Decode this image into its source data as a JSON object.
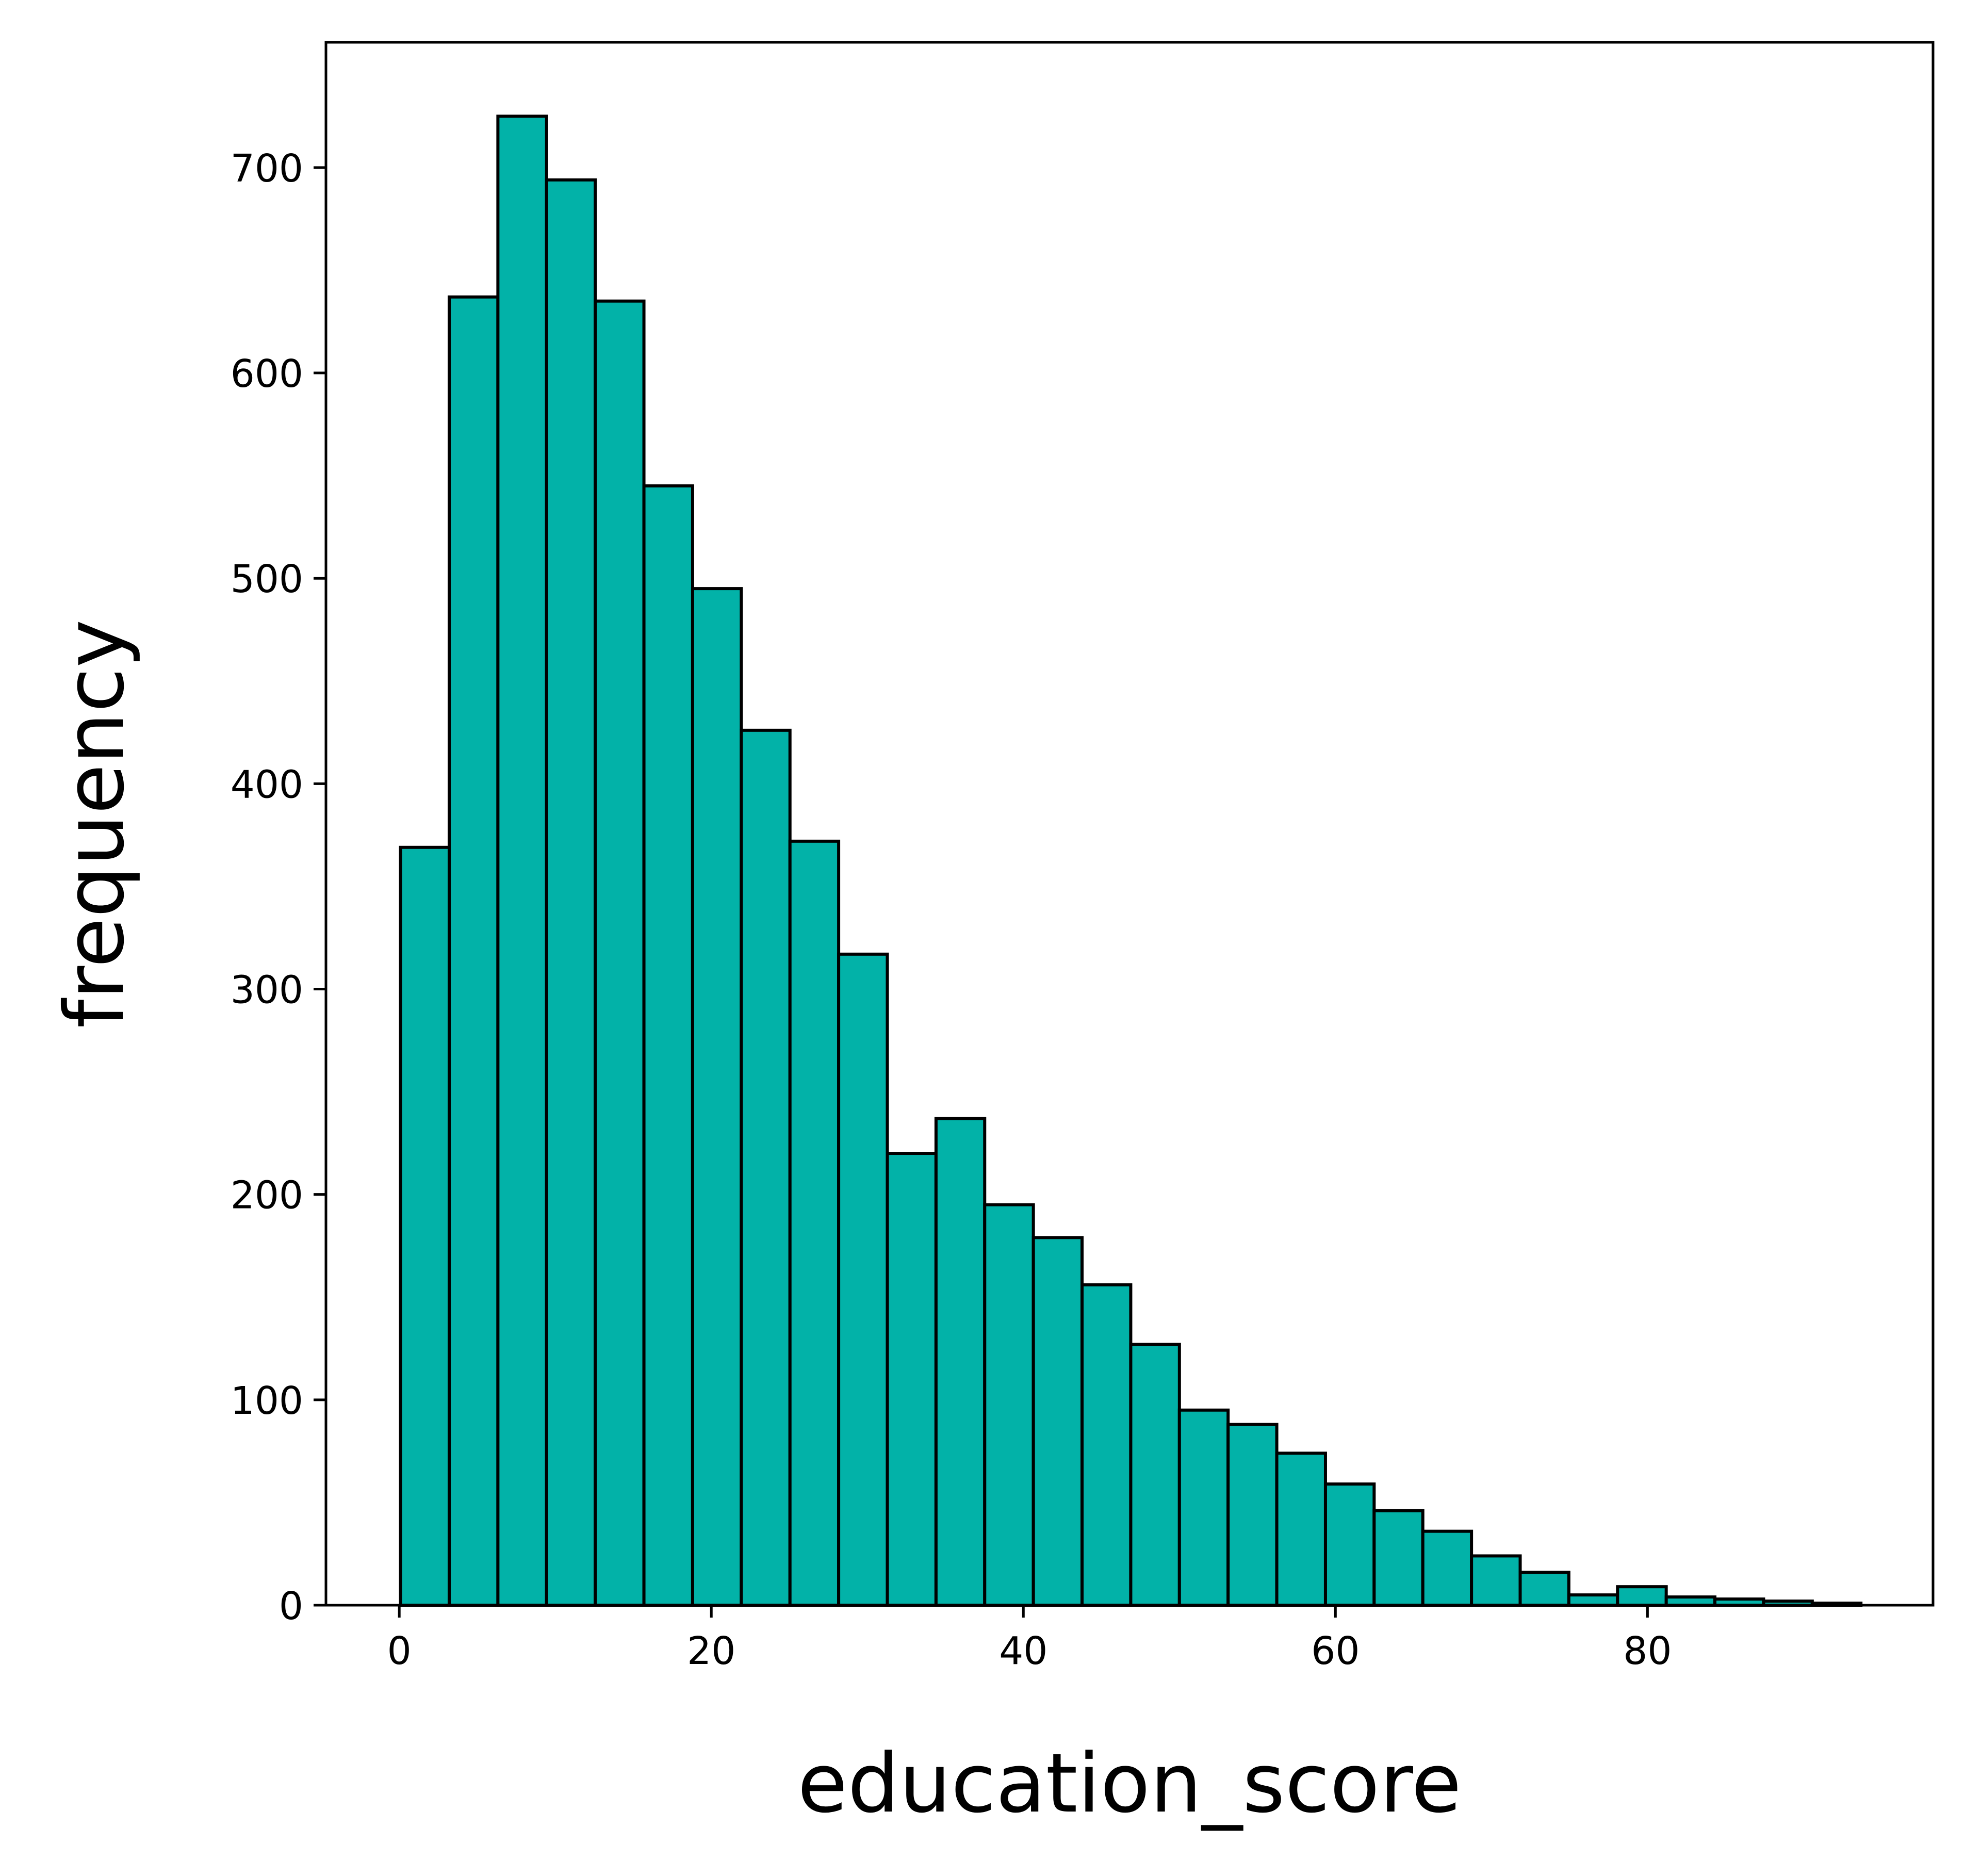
{
  "chart_data": {
    "type": "bar",
    "histogram": true,
    "xlabel": "education_score",
    "ylabel": "frequency",
    "xlim": [
      -4.7,
      98.3
    ],
    "ylim": [
      0,
      761
    ],
    "xticks": [
      0,
      20,
      40,
      60,
      80
    ],
    "yticks": [
      0,
      100,
      200,
      300,
      400,
      500,
      600,
      700
    ],
    "bin_edges": [
      0.08,
      3.2,
      6.32,
      9.44,
      12.56,
      15.68,
      18.8,
      21.92,
      25.04,
      28.16,
      31.28,
      34.4,
      37.52,
      40.64,
      43.76,
      46.88,
      50.0,
      53.12,
      56.24,
      59.36,
      62.48,
      65.6,
      68.72,
      71.84,
      74.96,
      78.08,
      81.2,
      84.32,
      87.44,
      90.56,
      93.68
    ],
    "values": [
      369,
      637,
      725,
      694,
      635,
      545,
      495,
      426,
      372,
      317,
      220,
      237,
      195,
      179,
      156,
      127,
      95,
      88,
      74,
      59,
      46,
      36,
      24,
      16,
      5,
      9,
      4,
      3,
      2,
      1
    ],
    "bar_color": "#02b2a8",
    "edge_color": "#000000",
    "grid": false
  }
}
